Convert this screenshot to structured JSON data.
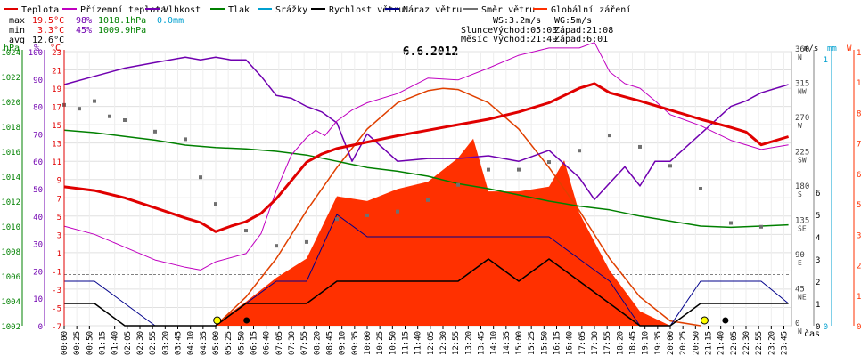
{
  "chart_data": {
    "type": "line",
    "title": "6.6.2012",
    "xlabel": "čas",
    "legend": [
      {
        "name": "Teplota",
        "color": "#e00000"
      },
      {
        "name": "Přízemní teplota",
        "color": "#c000c0"
      },
      {
        "name": "Vlhkost",
        "color": "#7000b0"
      },
      {
        "name": "Tlak",
        "color": "#008000"
      },
      {
        "name": "Srážky",
        "color": "#00a0d0"
      },
      {
        "name": "Rychlost větru",
        "color": "#000000"
      },
      {
        "name": "Náraz větru",
        "color": "#00008b"
      },
      {
        "name": "Směr větru",
        "color": "#707070"
      },
      {
        "name": "Globální záření",
        "color": "#ff3000"
      }
    ],
    "stats": {
      "max_label": "max",
      "max_temp": "19.5°C",
      "max_hum": "98%",
      "max_press": "1018.1hPa",
      "rain": "0.0mm",
      "min_label": "min",
      "min_temp": "3.3°C",
      "min_hum": "45%",
      "min_press": "1009.9hPa",
      "avg_label": "avg",
      "avg_temp": "12.6°C"
    },
    "info": {
      "ws": "WS:3.2m/s",
      "wg": "WG:5m/s",
      "sun_label": "Slunce",
      "sunrise": "Východ:05:03",
      "sunset": "Západ:21:08",
      "moon_label": "Měsíc",
      "moonrise": "Východ:21:49",
      "moonset": "Západ:6:01"
    },
    "axes": {
      "hpa_unit": "hPa",
      "pct_unit": "%",
      "c_unit": "°C",
      "hpa_ticks": [
        "1002",
        "1004",
        "1006",
        "1008",
        "1010",
        "1012",
        "1014",
        "1016",
        "1018",
        "1020",
        "1022",
        "1024"
      ],
      "pct_ticks": [
        "0",
        "10",
        "20",
        "30",
        "40",
        "50",
        "60",
        "70",
        "80",
        "90",
        "100"
      ],
      "c_ticks": [
        "-7",
        "-5",
        "-3",
        "-1",
        "1",
        "3",
        "5",
        "7",
        "9",
        "11",
        "13",
        "15",
        "17",
        "19",
        "21",
        "23"
      ],
      "dir_unit": "°",
      "dir_ticks": [
        "0",
        "45",
        "90",
        "135",
        "180",
        "225",
        "270",
        "315",
        "360"
      ],
      "dir_labels": [
        "N",
        "NE",
        "E",
        "SE",
        "S",
        "SW",
        "W",
        "NW",
        "N"
      ],
      "ms_unit": "m/s",
      "mm_unit": "mm",
      "w_unit": "W",
      "ms_ticks": [
        "0",
        "1",
        "2",
        "3",
        "4",
        "5",
        "6"
      ],
      "mm_ticks": [
        "0",
        "1"
      ],
      "w_ticks": [
        "0",
        "127",
        "254",
        "381",
        "508",
        "635",
        "762",
        "889",
        "1016",
        "1143"
      ],
      "time_ticks": [
        "00:00",
        "00:25",
        "00:50",
        "01:15",
        "01:40",
        "02:05",
        "02:30",
        "02:55",
        "03:20",
        "03:45",
        "04:10",
        "04:35",
        "05:00",
        "05:25",
        "05:50",
        "06:15",
        "06:40",
        "07:05",
        "07:30",
        "07:55",
        "08:20",
        "08:45",
        "09:10",
        "09:35",
        "10:00",
        "10:25",
        "10:50",
        "11:15",
        "11:40",
        "12:05",
        "12:30",
        "12:55",
        "13:20",
        "13:45",
        "14:10",
        "14:35",
        "15:00",
        "15:25",
        "15:50",
        "16:15",
        "16:40",
        "17:05",
        "17:30",
        "17:55",
        "18:20",
        "18:45",
        "19:10",
        "19:35",
        "20:00",
        "20:25",
        "20:50",
        "21:15",
        "21:40",
        "22:05",
        "22:30",
        "22:55",
        "23:20",
        "23:45"
      ]
    },
    "series": [
      {
        "name": "Teplota",
        "unit": "°C",
        "x": [
          0,
          1,
          2,
          3,
          4,
          4.5,
          5,
          5.5,
          6,
          6.5,
          7,
          7.5,
          8,
          8.5,
          9,
          10,
          11,
          12,
          13,
          14,
          15,
          16,
          17,
          17.5,
          18,
          19,
          20,
          21,
          22,
          22.5,
          23,
          23.9
        ],
        "values": [
          8.2,
          7.8,
          7.0,
          5.9,
          4.8,
          4.3,
          3.3,
          3.9,
          4.4,
          5.3,
          6.9,
          8.9,
          10.9,
          11.8,
          12.4,
          13.1,
          13.8,
          14.4,
          15.0,
          15.6,
          16.4,
          17.4,
          19.0,
          19.5,
          18.5,
          17.6,
          16.6,
          15.6,
          14.7,
          14.2,
          12.8,
          13.7
        ]
      },
      {
        "name": "Přízemní teplota",
        "unit": "°C",
        "x": [
          0,
          1,
          2,
          3,
          4,
          4.5,
          5,
          6,
          6.5,
          7,
          7.5,
          8,
          8.3,
          8.6,
          9,
          9.5,
          10,
          11,
          12,
          13,
          14,
          15,
          16,
          17,
          17.5,
          18,
          18.5,
          19,
          19.5,
          20,
          21,
          22,
          23,
          23.9
        ],
        "values": [
          3.9,
          3.0,
          1.6,
          0.2,
          -0.6,
          -0.9,
          0.0,
          0.9,
          3.1,
          7.8,
          11.7,
          13.6,
          14.4,
          13.8,
          15.4,
          16.6,
          17.4,
          18.4,
          20.1,
          19.9,
          21.2,
          22.6,
          23.4,
          23.4,
          24.0,
          20.8,
          19.5,
          19.0,
          17.6,
          16.1,
          14.9,
          13.3,
          12.3,
          12.8
        ]
      },
      {
        "name": "Vlhkost",
        "unit": "%",
        "x": [
          0,
          1,
          2,
          3,
          4,
          4.5,
          5,
          5.5,
          6,
          6.5,
          7,
          7.5,
          8,
          8.5,
          9,
          9.5,
          10,
          11,
          12,
          13,
          14,
          15,
          16,
          17,
          17.5,
          18,
          18.5,
          19,
          19.5,
          20,
          21,
          22,
          22.5,
          23,
          23.9
        ],
        "values": [
          88,
          91,
          94,
          96,
          98,
          97,
          98,
          97,
          97,
          91,
          84,
          83,
          80,
          78,
          74,
          60,
          70,
          60,
          61,
          61,
          62,
          60,
          64,
          54,
          46,
          52,
          58,
          51,
          60,
          60,
          70,
          80,
          82,
          85,
          88
        ]
      },
      {
        "name": "Tlak",
        "unit": "hPa",
        "x": [
          0,
          1,
          2,
          3,
          4,
          5,
          6,
          7,
          8,
          9,
          10,
          11,
          12,
          13,
          14,
          15,
          16,
          17,
          18,
          19,
          20,
          21,
          22,
          23,
          23.9
        ],
        "values": [
          1017.7,
          1017.5,
          1017.2,
          1016.9,
          1016.5,
          1016.3,
          1016.2,
          1016.0,
          1015.7,
          1015.2,
          1014.7,
          1014.4,
          1014.0,
          1013.4,
          1013.0,
          1012.5,
          1012.0,
          1011.6,
          1011.3,
          1010.8,
          1010.4,
          1010.0,
          1009.9,
          1010.0,
          1010.1
        ]
      },
      {
        "name": "Rychlost větru",
        "unit": "m/s",
        "x": [
          0,
          1,
          2,
          3,
          4,
          5,
          6,
          7,
          8,
          9,
          10,
          11,
          12,
          13,
          14,
          15,
          16,
          17,
          18,
          19,
          20,
          21,
          22,
          23,
          23.9
        ],
        "values": [
          1,
          1,
          0,
          0,
          0,
          0,
          1,
          1,
          1,
          2,
          2,
          2,
          2,
          2,
          3,
          2,
          3,
          2,
          1,
          0,
          0,
          1,
          1,
          1,
          1
        ]
      },
      {
        "name": "Náraz větru",
        "unit": "m/s",
        "x": [
          0,
          1,
          2,
          3,
          4,
          5,
          6,
          7,
          8,
          9,
          10,
          11,
          12,
          13,
          14,
          15,
          16,
          17,
          18,
          19,
          20,
          21,
          22,
          23,
          23.9
        ],
        "values": [
          2,
          2,
          1,
          0,
          0,
          0,
          1,
          2,
          2,
          5,
          4,
          4,
          4,
          4,
          4,
          4,
          4,
          3,
          2,
          0,
          0,
          2,
          2,
          2,
          1
        ]
      },
      {
        "name": "Globální záření",
        "unit": "W",
        "x": [
          5,
          6,
          7,
          8,
          9,
          10,
          11,
          12,
          13,
          13.5,
          14,
          15,
          16,
          16.5,
          17,
          18,
          19,
          20
        ],
        "values": [
          10,
          100,
          200,
          280,
          540,
          520,
          570,
          600,
          700,
          780,
          560,
          560,
          580,
          690,
          470,
          230,
          60,
          0
        ]
      },
      {
        "name": "Globální záření (teoretické)",
        "unit": "W",
        "x": [
          5,
          6,
          7,
          8,
          9,
          10,
          11,
          12,
          12.5,
          13,
          14,
          15,
          16,
          17,
          18,
          19,
          20,
          21
        ],
        "values": [
          0,
          120,
          280,
          480,
          660,
          820,
          930,
          980,
          990,
          985,
          930,
          820,
          660,
          480,
          280,
          120,
          20,
          0
        ]
      },
      {
        "name": "Směr větru",
        "unit": "°",
        "x": [
          0,
          0.5,
          1,
          1.5,
          2,
          3,
          4,
          4.5,
          5,
          6,
          7,
          8,
          9,
          10,
          11,
          12,
          13,
          14,
          15,
          16,
          17,
          18,
          19,
          20,
          21,
          22,
          23
        ],
        "values": [
          290,
          285,
          295,
          275,
          270,
          255,
          245,
          195,
          160,
          125,
          105,
          110,
          140,
          145,
          150,
          165,
          185,
          205,
          205,
          215,
          230,
          250,
          235,
          210,
          180,
          135,
          130
        ]
      }
    ]
  }
}
